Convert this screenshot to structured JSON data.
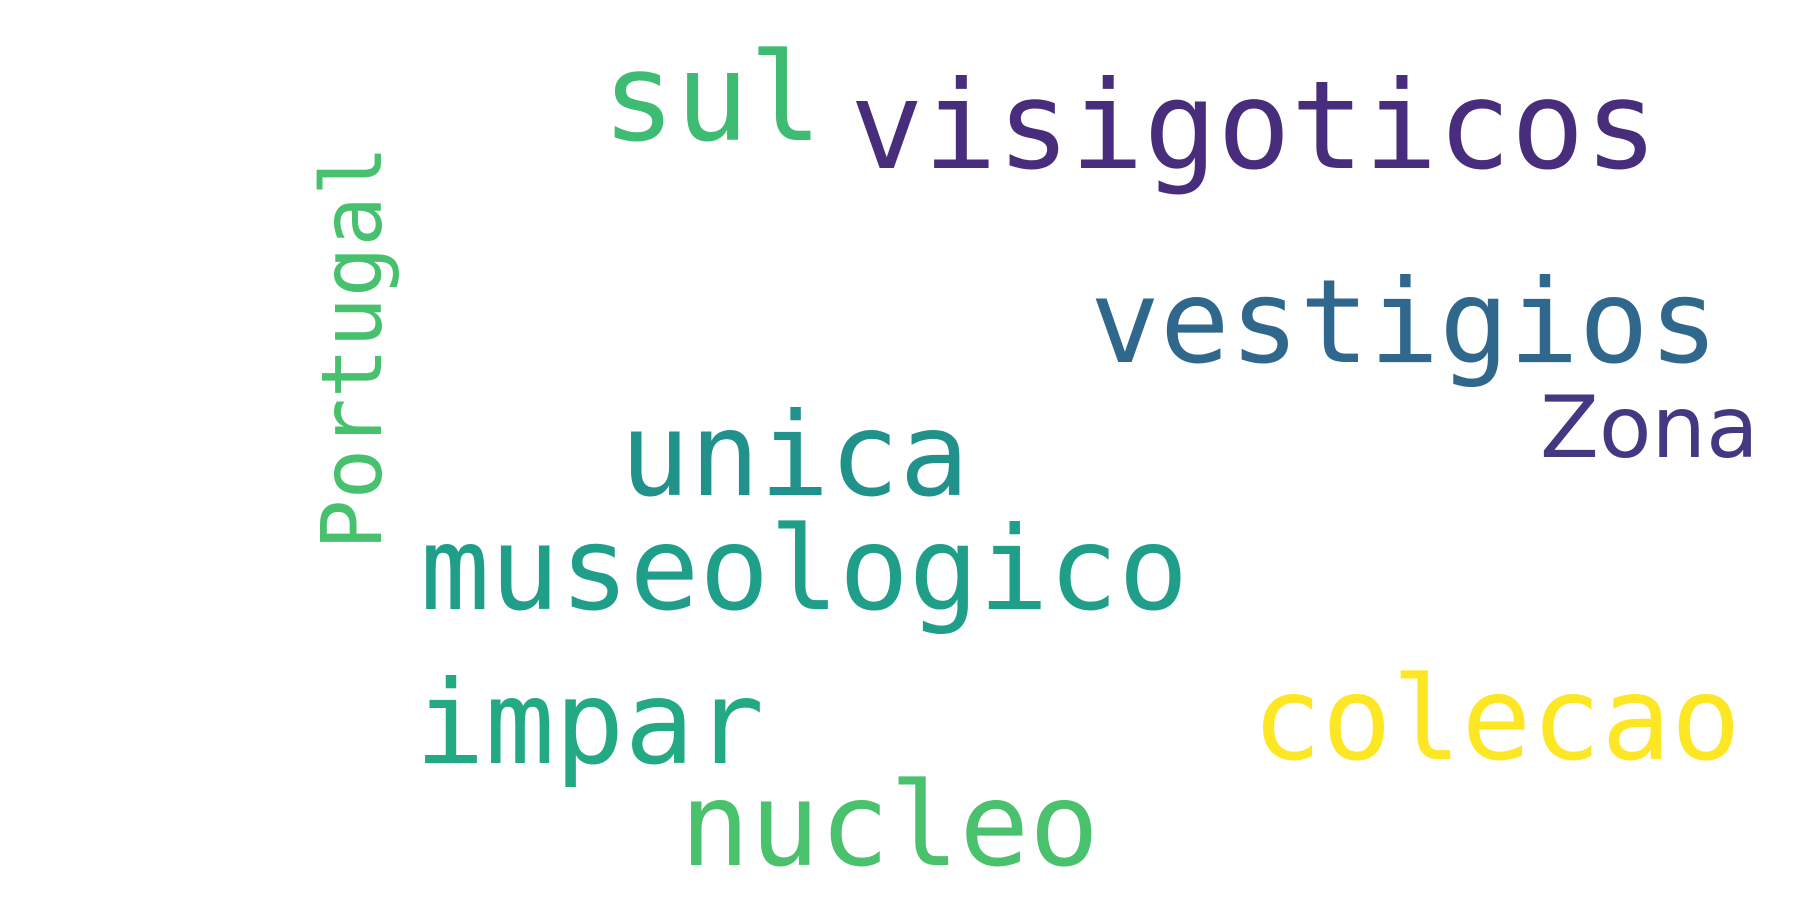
{
  "words": [
    {
      "text": "sul",
      "color": "#3fbc73"
    },
    {
      "text": "visigoticos",
      "color": "#472d7b"
    },
    {
      "text": "vestigios",
      "color": "#30678d"
    },
    {
      "text": "Zona",
      "color": "#453781"
    },
    {
      "text": "unica",
      "color": "#21918c"
    },
    {
      "text": "museologico",
      "color": "#1f9e89"
    },
    {
      "text": "impar",
      "color": "#23a983"
    },
    {
      "text": "colecao",
      "color": "#fde725"
    },
    {
      "text": "nucleo",
      "color": "#4ac16d"
    },
    {
      "text": "Portugal",
      "color": "#48c16e"
    }
  ]
}
